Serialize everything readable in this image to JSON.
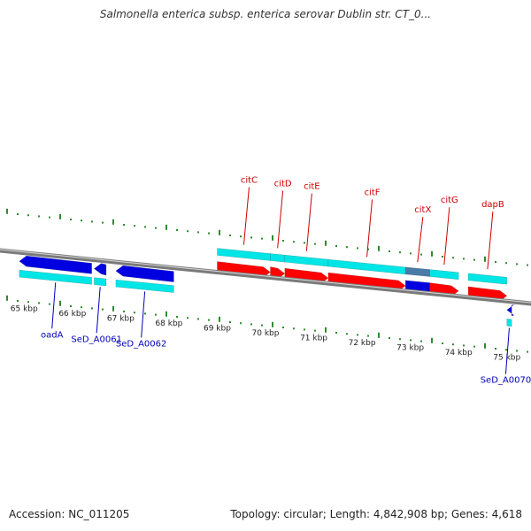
{
  "title": "Salmonella enterica subsp. enterica serovar Dublin str. CT_0...",
  "footer": {
    "accession": "Accession: NC_011205",
    "summary": "Topology: circular; Length: 4,842,908 bp; Genes: 4,618"
  },
  "colors": {
    "forward_cds": "#ff0000",
    "forward_gene": "#00e5e5",
    "reverse_cds": "#0000e0",
    "reverse_gene": "#00e5e5",
    "pseudo": "#4a7aa8",
    "forward_label": "#cc0000",
    "reverse_label": "#0000bb",
    "backbone": "#7a7a7a",
    "tick": "#2e8b2e"
  },
  "axis_labels": [
    "65 kbp",
    "66 kbp",
    "67 kbp",
    "68 kbp",
    "69 kbp",
    "70 kbp",
    "71 kbp",
    "72 kbp",
    "73 kbp",
    "74 kbp",
    "75 kbp"
  ],
  "forward_genes": [
    {
      "label": "citC",
      "start": 69.0,
      "end": 70.1
    },
    {
      "label": "citD",
      "start": 70.1,
      "end": 70.4
    },
    {
      "label": "citE",
      "start": 70.4,
      "end": 71.3
    },
    {
      "label": "citF",
      "start": 71.3,
      "end": 72.9
    },
    {
      "label": "citG",
      "start": 73.4,
      "end": 74.0
    },
    {
      "label": "dapB",
      "start": 74.2,
      "end": 75.0
    }
  ],
  "forward_features": [
    {
      "label": "citX",
      "start": 72.9,
      "end": 73.4
    }
  ],
  "reverse_genes": [
    {
      "label": "oadA",
      "start": 64.9,
      "end": 66.4
    },
    {
      "label": "SeD_A0061",
      "start": 66.45,
      "end": 66.7
    },
    {
      "label": "SeD_A0062",
      "start": 66.9,
      "end": 68.1
    },
    {
      "label": "SeD_A0070",
      "start": 75.0,
      "end": 75.1
    }
  ]
}
